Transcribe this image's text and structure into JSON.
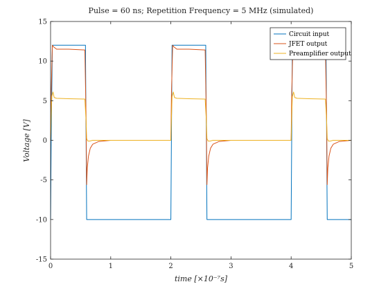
{
  "chart_data": {
    "type": "line",
    "title": "Pulse = 60 ns; Repetition Frequency = 5 MHz (simulated)",
    "xlabel": "time [×10⁻⁷s]",
    "ylabel": "Voltage [V]",
    "xlim": [
      0,
      5
    ],
    "ylim": [
      -15,
      15
    ],
    "xticks": [
      0,
      1,
      2,
      3,
      4,
      5
    ],
    "yticks": [
      -15,
      -10,
      -5,
      0,
      5,
      10,
      15
    ],
    "grid": false,
    "legend_position": "top-right",
    "series": [
      {
        "name": "Circuit input",
        "color": "#0072BD",
        "x": [
          0,
          0.01,
          0.03,
          0.58,
          0.6,
          2.0,
          2.02,
          2.58,
          2.6,
          4.0,
          4.02,
          4.58,
          4.6,
          5.0
        ],
        "y": [
          -10,
          0,
          12,
          12,
          -10,
          -10,
          12,
          12,
          -10,
          -10,
          12,
          12,
          -10,
          -10
        ]
      },
      {
        "name": "JFET output",
        "color": "#D95319",
        "x": [
          0,
          0.01,
          0.03,
          0.05,
          0.1,
          0.3,
          0.57,
          0.59,
          0.6,
          0.61,
          0.63,
          0.66,
          0.7,
          0.8,
          1.0,
          2.0,
          2.01,
          2.03,
          2.05,
          2.1,
          2.3,
          2.57,
          2.59,
          2.6,
          2.61,
          2.63,
          2.66,
          2.7,
          2.8,
          3.0,
          4.0,
          4.01,
          4.03,
          4.05,
          4.1,
          4.3,
          4.57,
          4.59,
          4.6,
          4.61,
          4.63,
          4.66,
          4.7,
          4.8,
          5.0
        ],
        "y": [
          0,
          6,
          12,
          11.8,
          11.5,
          11.5,
          11.4,
          3,
          -5.6,
          -3.5,
          -2,
          -1,
          -0.5,
          -0.15,
          0,
          0,
          6,
          12,
          11.8,
          11.5,
          11.5,
          11.4,
          3,
          -5.6,
          -3.5,
          -2,
          -1,
          -0.5,
          -0.15,
          0,
          0,
          6,
          12,
          11.8,
          11.5,
          11.5,
          11.4,
          3,
          -5.6,
          -3.5,
          -2,
          -1,
          -0.5,
          -0.15,
          0
        ]
      },
      {
        "name": "Preamplifier output",
        "color": "#EDB120",
        "x": [
          0,
          0.01,
          0.02,
          0.04,
          0.06,
          0.1,
          0.3,
          0.57,
          0.59,
          0.6,
          0.62,
          0.65,
          0.7,
          0.8,
          1.0,
          2.0,
          2.01,
          2.02,
          2.04,
          2.06,
          2.1,
          2.3,
          2.57,
          2.59,
          2.6,
          2.62,
          2.65,
          2.7,
          2.8,
          3.0,
          4.0,
          4.01,
          4.02,
          4.04,
          4.06,
          4.1,
          4.3,
          4.57,
          4.59,
          4.6,
          4.62,
          4.65,
          4.7,
          4.8,
          5.0
        ],
        "y": [
          0,
          3,
          5.5,
          6.1,
          5.4,
          5.3,
          5.25,
          5.2,
          2.5,
          0.2,
          -0.1,
          -0.1,
          0,
          0,
          0,
          0,
          3,
          5.5,
          6.1,
          5.4,
          5.3,
          5.25,
          5.2,
          2.5,
          0.2,
          -0.1,
          -0.1,
          0,
          0,
          0,
          0,
          3,
          5.5,
          6.1,
          5.4,
          5.3,
          5.25,
          5.2,
          2.5,
          0.2,
          -0.1,
          -0.1,
          0,
          0,
          0
        ]
      }
    ]
  }
}
